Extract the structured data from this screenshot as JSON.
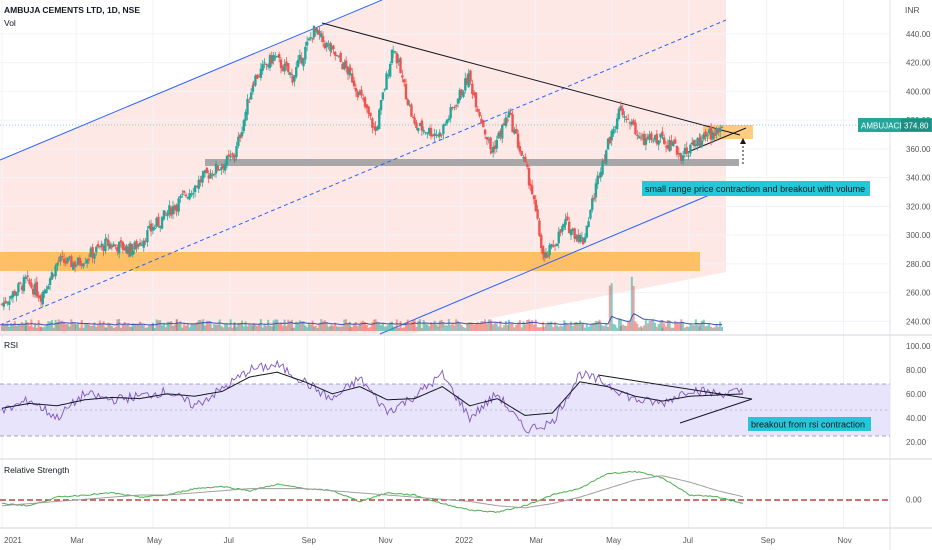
{
  "header": {
    "symbol_line": "AMBUJA CEMENTS LTD, 1D, NSE",
    "vol_label": "Vol",
    "currency": "INR"
  },
  "price_badge": {
    "ticker": "AMBUJACEM",
    "price": "374.80"
  },
  "annotations": {
    "price_note": "small range price contraction and breakout with volume",
    "rsi_note": "breakout from rsi contraction"
  },
  "panes": {
    "rsi_label": "RSI",
    "rs_label": "Relative Strength"
  },
  "x_labels": [
    "2021",
    "Mar",
    "May",
    "Jul",
    "Sep",
    "Nov",
    "2022",
    "Mar",
    "May",
    "Jul",
    "Sep",
    "Nov"
  ],
  "colors": {
    "up": "#26a69a",
    "down": "#ef5350",
    "channel": "#2962ff",
    "zone_orange": "#ffb74d",
    "zone_grey": "#9e9e9e",
    "badge": "#26a69a",
    "note_bg": "#26c6da"
  },
  "chart_data": [
    {
      "type": "candlestick",
      "title": "AMBUJA CEMENTS LTD, 1D, NSE",
      "ylabel": "INR",
      "y_ticks": [
        440,
        420,
        400,
        380,
        360,
        340,
        320,
        300,
        280,
        260,
        240
      ],
      "ylim": [
        234,
        458
      ],
      "x_range": [
        "2021-01-01",
        "2022-11-30"
      ],
      "anchors": [
        {
          "date": "2021-01-01",
          "close": 252
        },
        {
          "date": "2021-01-20",
          "close": 268
        },
        {
          "date": "2021-02-01",
          "close": 258
        },
        {
          "date": "2021-02-15",
          "close": 282
        },
        {
          "date": "2021-03-01",
          "close": 280
        },
        {
          "date": "2021-03-25",
          "close": 294
        },
        {
          "date": "2021-04-15",
          "close": 290
        },
        {
          "date": "2021-05-01",
          "close": 305
        },
        {
          "date": "2021-05-20",
          "close": 322
        },
        {
          "date": "2021-06-10",
          "close": 340
        },
        {
          "date": "2021-07-05",
          "close": 355
        },
        {
          "date": "2021-07-20",
          "close": 408
        },
        {
          "date": "2021-08-05",
          "close": 424
        },
        {
          "date": "2021-08-20",
          "close": 410
        },
        {
          "date": "2021-09-06",
          "close": 442
        },
        {
          "date": "2021-09-20",
          "close": 428
        },
        {
          "date": "2021-10-05",
          "close": 412
        },
        {
          "date": "2021-10-25",
          "close": 372
        },
        {
          "date": "2021-11-08",
          "close": 432
        },
        {
          "date": "2021-11-25",
          "close": 376
        },
        {
          "date": "2021-12-15",
          "close": 370
        },
        {
          "date": "2022-01-07",
          "close": 410
        },
        {
          "date": "2022-01-25",
          "close": 358
        },
        {
          "date": "2022-02-08",
          "close": 384
        },
        {
          "date": "2022-02-25",
          "close": 336
        },
        {
          "date": "2022-03-08",
          "close": 282
        },
        {
          "date": "2022-03-25",
          "close": 308
        },
        {
          "date": "2022-04-08",
          "close": 296
        },
        {
          "date": "2022-04-22",
          "close": 348
        },
        {
          "date": "2022-05-08",
          "close": 390
        },
        {
          "date": "2022-05-25",
          "close": 365
        },
        {
          "date": "2022-06-10",
          "close": 368
        },
        {
          "date": "2022-06-25",
          "close": 356
        },
        {
          "date": "2022-07-10",
          "close": 366
        },
        {
          "date": "2022-07-28",
          "close": 375
        }
      ],
      "volume_spikes": [
        "2022-04-30",
        "2022-05-18"
      ]
    },
    {
      "type": "line",
      "title": "RSI",
      "y_ticks": [
        100,
        80,
        60,
        40,
        20
      ],
      "ylim": [
        14,
        104
      ],
      "series": [
        {
          "values": [
            45,
            55,
            40,
            60,
            55,
            58,
            62,
            50,
            64,
            80,
            84,
            70,
            55,
            73,
            45,
            58,
            76,
            40,
            60,
            30,
            36,
            77,
            68,
            55,
            52,
            64,
            60,
            62
          ]
        },
        {
          "values": [
            48,
            52,
            50,
            55,
            57,
            56,
            60,
            58,
            62,
            74,
            78,
            70,
            60,
            66,
            55,
            56,
            66,
            50,
            56,
            42,
            44,
            70,
            66,
            58,
            54,
            58,
            59,
            60
          ]
        }
      ]
    },
    {
      "type": "line",
      "title": "Relative Strength",
      "y_ticks": [
        "0.00"
      ],
      "ylim": [
        -0.12,
        0.16
      ],
      "series": [
        {
          "values": [
            -0.02,
            -0.03,
            0.01,
            0.02,
            0.03,
            0.01,
            0.02,
            0.05,
            0.06,
            0.04,
            0.07,
            0.05,
            0.04,
            -0.01,
            0.03,
            0.02,
            -0.02,
            -0.05,
            -0.06,
            -0.03,
            0.02,
            0.05,
            0.12,
            0.13,
            0.1,
            0.02,
            0.01,
            -0.02
          ]
        },
        {
          "values": [
            -0.03,
            -0.02,
            -0.01,
            0.0,
            0.01,
            0.02,
            0.02,
            0.03,
            0.04,
            0.05,
            0.05,
            0.05,
            0.04,
            0.03,
            0.02,
            0.01,
            0.0,
            -0.01,
            -0.03,
            -0.04,
            -0.02,
            0.01,
            0.05,
            0.09,
            0.11,
            0.08,
            0.04,
            0.01
          ]
        }
      ]
    }
  ]
}
